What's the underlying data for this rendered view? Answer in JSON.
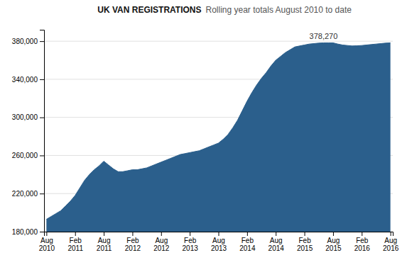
{
  "chart_data": {
    "type": "area",
    "title": "UK VAN REGISTRATIONS",
    "subtitle": "Rolling year totals August 2010 to date",
    "color": "#2B5F8C",
    "grid": true,
    "categories": [
      "Aug\n2010",
      null,
      null,
      null,
      null,
      null,
      "Feb\n2011",
      null,
      null,
      null,
      null,
      null,
      "Aug\n2011",
      null,
      null,
      null,
      null,
      null,
      "Feb\n2012",
      null,
      null,
      null,
      null,
      null,
      "Aug\n2012",
      null,
      null,
      null,
      null,
      null,
      "Feb\n2013",
      null,
      null,
      null,
      null,
      null,
      "Aug\n2013",
      null,
      null,
      null,
      null,
      null,
      "Feb\n2014",
      null,
      null,
      null,
      null,
      null,
      "Aug\n2014",
      null,
      null,
      null,
      null,
      null,
      "Feb\n2015",
      null,
      null,
      null,
      null,
      null,
      "Aug\n2015",
      null,
      null,
      null,
      null,
      null,
      "Feb\n2016",
      null,
      null,
      null,
      null,
      null,
      "Aug\n2016"
    ],
    "values": [
      193000,
      196000,
      199000,
      202000,
      207000,
      212000,
      218000,
      226000,
      234000,
      240000,
      245000,
      249000,
      254000,
      250000,
      246000,
      243000,
      243000,
      244000,
      245000,
      245000,
      246000,
      247000,
      249000,
      251000,
      253000,
      255000,
      257000,
      259000,
      261000,
      262000,
      263000,
      264000,
      265000,
      267000,
      269000,
      271000,
      273000,
      277000,
      282000,
      289000,
      297000,
      307000,
      317000,
      326000,
      334000,
      341000,
      347000,
      354000,
      360000,
      364000,
      368000,
      371000,
      374000,
      375000,
      376000,
      377000,
      377500,
      378000,
      378270,
      378270,
      378270,
      377000,
      376000,
      375500,
      375000,
      375200,
      375500,
      376000,
      376500,
      377000,
      377500,
      378000,
      378270
    ],
    "ylim": [
      180000,
      392000
    ],
    "yticks": [
      {
        "value": 180000,
        "label": "180,000"
      },
      {
        "value": 220000,
        "label": "220,000"
      },
      {
        "value": 260000,
        "label": "260,000"
      },
      {
        "value": 300000,
        "label": "300,000"
      },
      {
        "value": 340000,
        "label": "340,000"
      },
      {
        "value": 380000,
        "label": "380,000"
      }
    ],
    "annotations": [
      {
        "text": "378,270",
        "x": 58,
        "y": 378270
      }
    ]
  }
}
